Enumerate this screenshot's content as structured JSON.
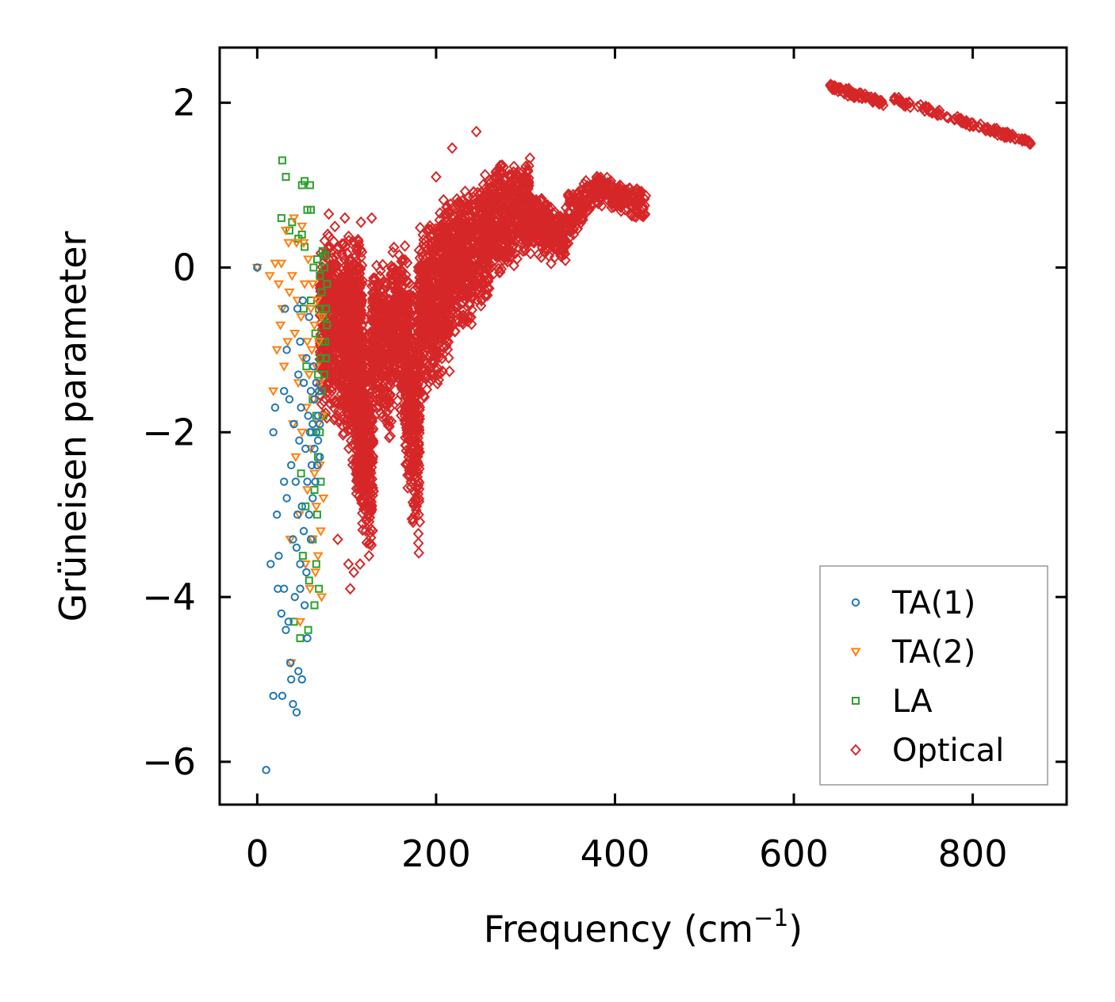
{
  "chart_data": {
    "type": "scatter",
    "title": "",
    "xlabel": "Frequency (cm",
    "xlabel_sup": "−1",
    "xlabel_close": ")",
    "ylabel": "Grüneisen parameter",
    "xlim": [
      -42,
      905
    ],
    "ylim": [
      -6.52,
      2.67
    ],
    "xticks": [
      0,
      200,
      400,
      600,
      800
    ],
    "xtick_labels": [
      "0",
      "200",
      "400",
      "600",
      "800"
    ],
    "yticks": [
      2,
      0,
      -2,
      -4,
      -6
    ],
    "ytick_labels": [
      "2",
      "0",
      "−2",
      "−4",
      "−6"
    ],
    "grid": false,
    "legend_position": "lower-right",
    "series": [
      {
        "name": "TA(1)",
        "marker": "circle",
        "color": "#1f77b4",
        "points": [
          [
            0,
            0
          ],
          [
            10,
            -6.1
          ],
          [
            15,
            -3.6
          ],
          [
            18,
            -5.2
          ],
          [
            18,
            -2.0
          ],
          [
            20,
            -1.7
          ],
          [
            22,
            -3.0
          ],
          [
            23,
            -3.9
          ],
          [
            24,
            -3.5
          ],
          [
            27,
            -4.2
          ],
          [
            28,
            -5.2
          ],
          [
            30,
            -2.6
          ],
          [
            30,
            -3.9
          ],
          [
            30,
            -1.5
          ],
          [
            31,
            -0.5
          ],
          [
            32,
            -4.4
          ],
          [
            33,
            -1.0
          ],
          [
            33,
            -2.8
          ],
          [
            35,
            -4.3
          ],
          [
            36,
            -1.6
          ],
          [
            37,
            -4.8
          ],
          [
            38,
            -5.0
          ],
          [
            38,
            -2.4
          ],
          [
            40,
            -5.3
          ],
          [
            40,
            -3.3
          ],
          [
            41,
            -1.9
          ],
          [
            42,
            -4.0
          ],
          [
            43,
            -2.6
          ],
          [
            44,
            -5.4
          ],
          [
            44,
            -3.4
          ],
          [
            45,
            -0.5
          ],
          [
            45,
            -3.0
          ],
          [
            46,
            -4.9
          ],
          [
            46,
            -1.3
          ],
          [
            47,
            -2.1
          ],
          [
            48,
            -3.6
          ],
          [
            48,
            -3.9
          ],
          [
            48,
            -0.9
          ],
          [
            49,
            -1.7
          ],
          [
            50,
            -5.0
          ],
          [
            50,
            -2.9
          ],
          [
            51,
            -0.4
          ],
          [
            52,
            -3.2
          ],
          [
            52,
            -1.4
          ],
          [
            53,
            -4.1
          ],
          [
            54,
            -2.2
          ],
          [
            55,
            -1.1
          ],
          [
            55,
            -3.7
          ],
          [
            56,
            -4.5
          ],
          [
            56,
            -2.6
          ],
          [
            57,
            -1.8
          ],
          [
            58,
            -0.6
          ],
          [
            58,
            -3.0
          ],
          [
            59,
            -2.0
          ],
          [
            60,
            -1.5
          ],
          [
            60,
            -3.3
          ],
          [
            61,
            -2.4
          ],
          [
            62,
            -1.9
          ],
          [
            62,
            -2.8
          ],
          [
            63,
            -1.2
          ],
          [
            64,
            -2.2
          ],
          [
            64,
            -1.6
          ],
          [
            65,
            -2.6
          ],
          [
            66,
            -2.0
          ],
          [
            66,
            -1.4
          ],
          [
            67,
            -2.4
          ],
          [
            68,
            -1.8
          ],
          [
            68,
            -2.1
          ],
          [
            69,
            -1.5
          ],
          [
            70,
            -1.9
          ],
          [
            70,
            -2.3
          ]
        ]
      },
      {
        "name": "TA(2)",
        "marker": "triangle-down",
        "color": "#ff7f0e",
        "points": [
          [
            0,
            0
          ],
          [
            14,
            -0.1
          ],
          [
            18,
            -1.5
          ],
          [
            20,
            0.05
          ],
          [
            22,
            -1.0
          ],
          [
            24,
            -0.2
          ],
          [
            26,
            -0.7
          ],
          [
            27,
            0.05
          ],
          [
            28,
            -0.5
          ],
          [
            30,
            -1.2
          ],
          [
            32,
            0.45
          ],
          [
            34,
            -0.9
          ],
          [
            35,
            0.3
          ],
          [
            36,
            -0.3
          ],
          [
            37,
            -3.3
          ],
          [
            38,
            -4.8
          ],
          [
            39,
            -0.1
          ],
          [
            40,
            -1.9
          ],
          [
            41,
            0.6
          ],
          [
            42,
            -0.8
          ],
          [
            43,
            -2.3
          ],
          [
            44,
            0.3
          ],
          [
            45,
            -0.4
          ],
          [
            46,
            -1.4
          ],
          [
            47,
            -3.0
          ],
          [
            48,
            -4.3
          ],
          [
            49,
            -0.6
          ],
          [
            50,
            0.5
          ],
          [
            50,
            -2.0
          ],
          [
            51,
            -1.1
          ],
          [
            52,
            0.3
          ],
          [
            53,
            -0.2
          ],
          [
            54,
            -3.6
          ],
          [
            55,
            -1.7
          ],
          [
            56,
            -0.9
          ],
          [
            56,
            -2.7
          ],
          [
            57,
            0.1
          ],
          [
            58,
            -1.3
          ],
          [
            59,
            -3.9
          ],
          [
            60,
            -0.5
          ],
          [
            60,
            -2.2
          ],
          [
            61,
            -1.0
          ],
          [
            62,
            -3.3
          ],
          [
            62,
            -0.2
          ],
          [
            63,
            -1.6
          ],
          [
            64,
            -2.5
          ],
          [
            64,
            -0.7
          ],
          [
            65,
            -3.7
          ],
          [
            66,
            -1.2
          ],
          [
            66,
            -2.9
          ],
          [
            67,
            -0.4
          ],
          [
            68,
            -1.9
          ],
          [
            68,
            -3.5
          ],
          [
            69,
            -0.9
          ],
          [
            70,
            -2.4
          ],
          [
            70,
            -1.4
          ],
          [
            71,
            -3.2
          ],
          [
            72,
            -0.6
          ],
          [
            72,
            -4.0
          ],
          [
            73,
            -1.8
          ],
          [
            74,
            -2.8
          ]
        ]
      },
      {
        "name": "LA",
        "marker": "square",
        "color": "#2ca02c",
        "points": [
          [
            27,
            0.6
          ],
          [
            28,
            1.3
          ],
          [
            32,
            1.1
          ],
          [
            36,
            0.45
          ],
          [
            39,
            0.55
          ],
          [
            41,
            -4.3
          ],
          [
            46,
            0.35
          ],
          [
            48,
            -4.5
          ],
          [
            49,
            -2.5
          ],
          [
            50,
            1.0
          ],
          [
            50,
            0.4
          ],
          [
            51,
            -3.5
          ],
          [
            52,
            -0.5
          ],
          [
            53,
            0.25
          ],
          [
            53,
            1.05
          ],
          [
            54,
            -2.9
          ],
          [
            55,
            -1.2
          ],
          [
            56,
            0.7
          ],
          [
            57,
            -4.4
          ],
          [
            58,
            -3.8
          ],
          [
            59,
            1.0
          ],
          [
            60,
            -0.4
          ],
          [
            60,
            0.7
          ],
          [
            61,
            -2.0
          ],
          [
            62,
            -3.3
          ],
          [
            62,
            -1.6
          ],
          [
            63,
            0.0
          ],
          [
            64,
            -4.1
          ],
          [
            64,
            -2.7
          ],
          [
            65,
            -0.8
          ],
          [
            66,
            -3.6
          ],
          [
            66,
            -1.8
          ],
          [
            67,
            0.1
          ],
          [
            67,
            -3.0
          ],
          [
            68,
            -2.3
          ],
          [
            68,
            -1.3
          ],
          [
            69,
            -0.5
          ],
          [
            69,
            -3.9
          ],
          [
            70,
            -2.0
          ],
          [
            70,
            -0.1
          ],
          [
            71,
            -1.1
          ],
          [
            71,
            -2.6
          ],
          [
            72,
            -0.3
          ],
          [
            72,
            -1.5
          ],
          [
            73,
            0.2
          ],
          [
            73,
            -0.9
          ],
          [
            74,
            -1.8
          ],
          [
            74,
            -0.6
          ],
          [
            75,
            -1.3
          ],
          [
            75,
            0.0
          ],
          [
            76,
            -0.9
          ],
          [
            76,
            0.15
          ],
          [
            77,
            -0.5
          ],
          [
            77,
            -1.1
          ],
          [
            78,
            -0.2
          ],
          [
            78,
            -0.7
          ]
        ]
      },
      {
        "name": "Optical",
        "marker": "diamond",
        "color": "#d62728",
        "points": [],
        "bands": [
          {
            "x_start": 70,
            "x_end": 105,
            "y_center": [
              -0.6,
              -0.9
            ],
            "y_spread": [
              1.2,
              1.4
            ]
          },
          {
            "x_start": 100,
            "x_end": 118,
            "y_center": [
              -0.9,
              -1.3
            ],
            "y_spread": [
              1.3,
              1.9
            ]
          },
          {
            "x_start": 110,
            "x_end": 130,
            "y_center": [
              -1.7,
              -2.2
            ],
            "y_spread": [
              1.3,
              1.6
            ]
          },
          {
            "x_start": 128,
            "x_end": 150,
            "y_center": [
              -0.8,
              -1.0
            ],
            "y_spread": [
              0.9,
              1.2
            ]
          },
          {
            "x_start": 150,
            "x_end": 168,
            "y_center": [
              -0.6,
              -0.8
            ],
            "y_spread": [
              0.9,
              1.3
            ]
          },
          {
            "x_start": 165,
            "x_end": 182,
            "y_center": [
              -1.4,
              -1.9
            ],
            "y_spread": [
              1.3,
              1.8
            ]
          },
          {
            "x_start": 180,
            "x_end": 215,
            "y_center": [
              -0.6,
              -0.2
            ],
            "y_spread": [
              1.1,
              1.2
            ]
          },
          {
            "x_start": 210,
            "x_end": 260,
            "y_center": [
              -0.1,
              0.4
            ],
            "y_spread": [
              0.9,
              0.9
            ]
          },
          {
            "x_start": 255,
            "x_end": 305,
            "y_center": [
              0.5,
              0.8
            ],
            "y_spread": [
              0.8,
              0.6
            ]
          },
          {
            "x_start": 300,
            "x_end": 345,
            "y_center": [
              0.6,
              0.35
            ],
            "y_spread": [
              0.5,
              0.35
            ]
          },
          {
            "x_start": 345,
            "x_end": 380,
            "y_center": [
              0.55,
              0.95
            ],
            "y_spread": [
              0.35,
              0.2
            ]
          },
          {
            "x_start": 380,
            "x_end": 435,
            "y_center": [
              0.95,
              0.75
            ],
            "y_spread": [
              0.2,
              0.2
            ]
          },
          {
            "x_start": 640,
            "x_end": 700,
            "y_center": [
              2.2,
              2.0
            ],
            "y_spread": [
              0.05,
              0.06
            ]
          },
          {
            "x_start": 710,
            "x_end": 865,
            "y_center": [
              2.05,
              1.52
            ],
            "y_spread": [
              0.05,
              0.04
            ]
          }
        ],
        "outliers": [
          [
            80,
            0.65
          ],
          [
            90,
            -3.3
          ],
          [
            98,
            0.6
          ],
          [
            102,
            -3.6
          ],
          [
            104,
            -3.9
          ],
          [
            108,
            -3.7
          ],
          [
            115,
            -3.6
          ],
          [
            116,
            0.55
          ],
          [
            125,
            -3.5
          ],
          [
            128,
            0.6
          ],
          [
            200,
            1.1
          ],
          [
            245,
            1.65
          ],
          [
            248,
            -0.3
          ],
          [
            218,
            1.45
          ]
        ]
      }
    ]
  }
}
